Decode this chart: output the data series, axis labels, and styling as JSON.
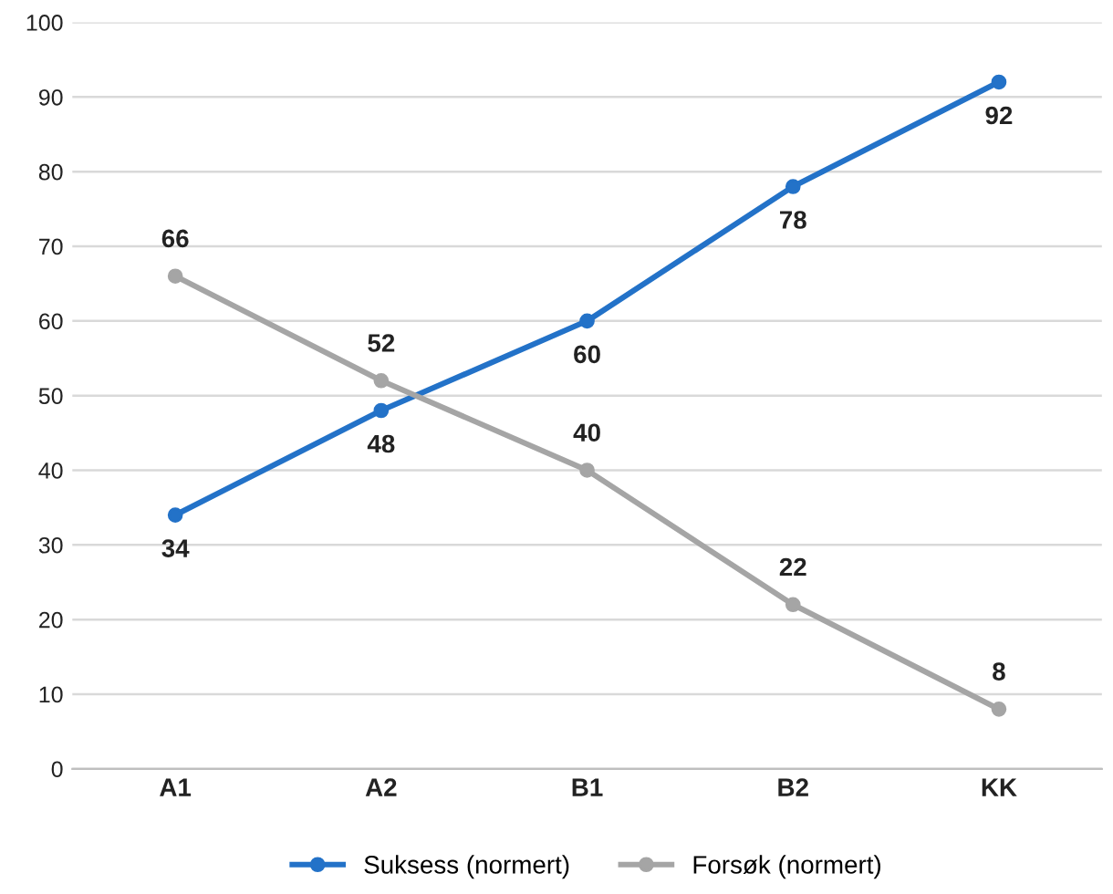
{
  "chart_data": {
    "type": "line",
    "categories": [
      "A1",
      "A2",
      "B1",
      "B2",
      "KK"
    ],
    "series": [
      {
        "name": "Suksess (normert)",
        "color": "#2372c8",
        "values": [
          34,
          48,
          60,
          78,
          92
        ]
      },
      {
        "name": "Forsøk (normert)",
        "color": "#a5a5a5",
        "values": [
          66,
          52,
          40,
          22,
          8
        ]
      }
    ],
    "ylim": [
      0,
      100
    ],
    "yticks": [
      0,
      10,
      20,
      30,
      40,
      50,
      60,
      70,
      80,
      90,
      100
    ],
    "grid": "y",
    "legend": "bottom",
    "marker": "circle",
    "line_style": "solid",
    "data_labels": true
  }
}
